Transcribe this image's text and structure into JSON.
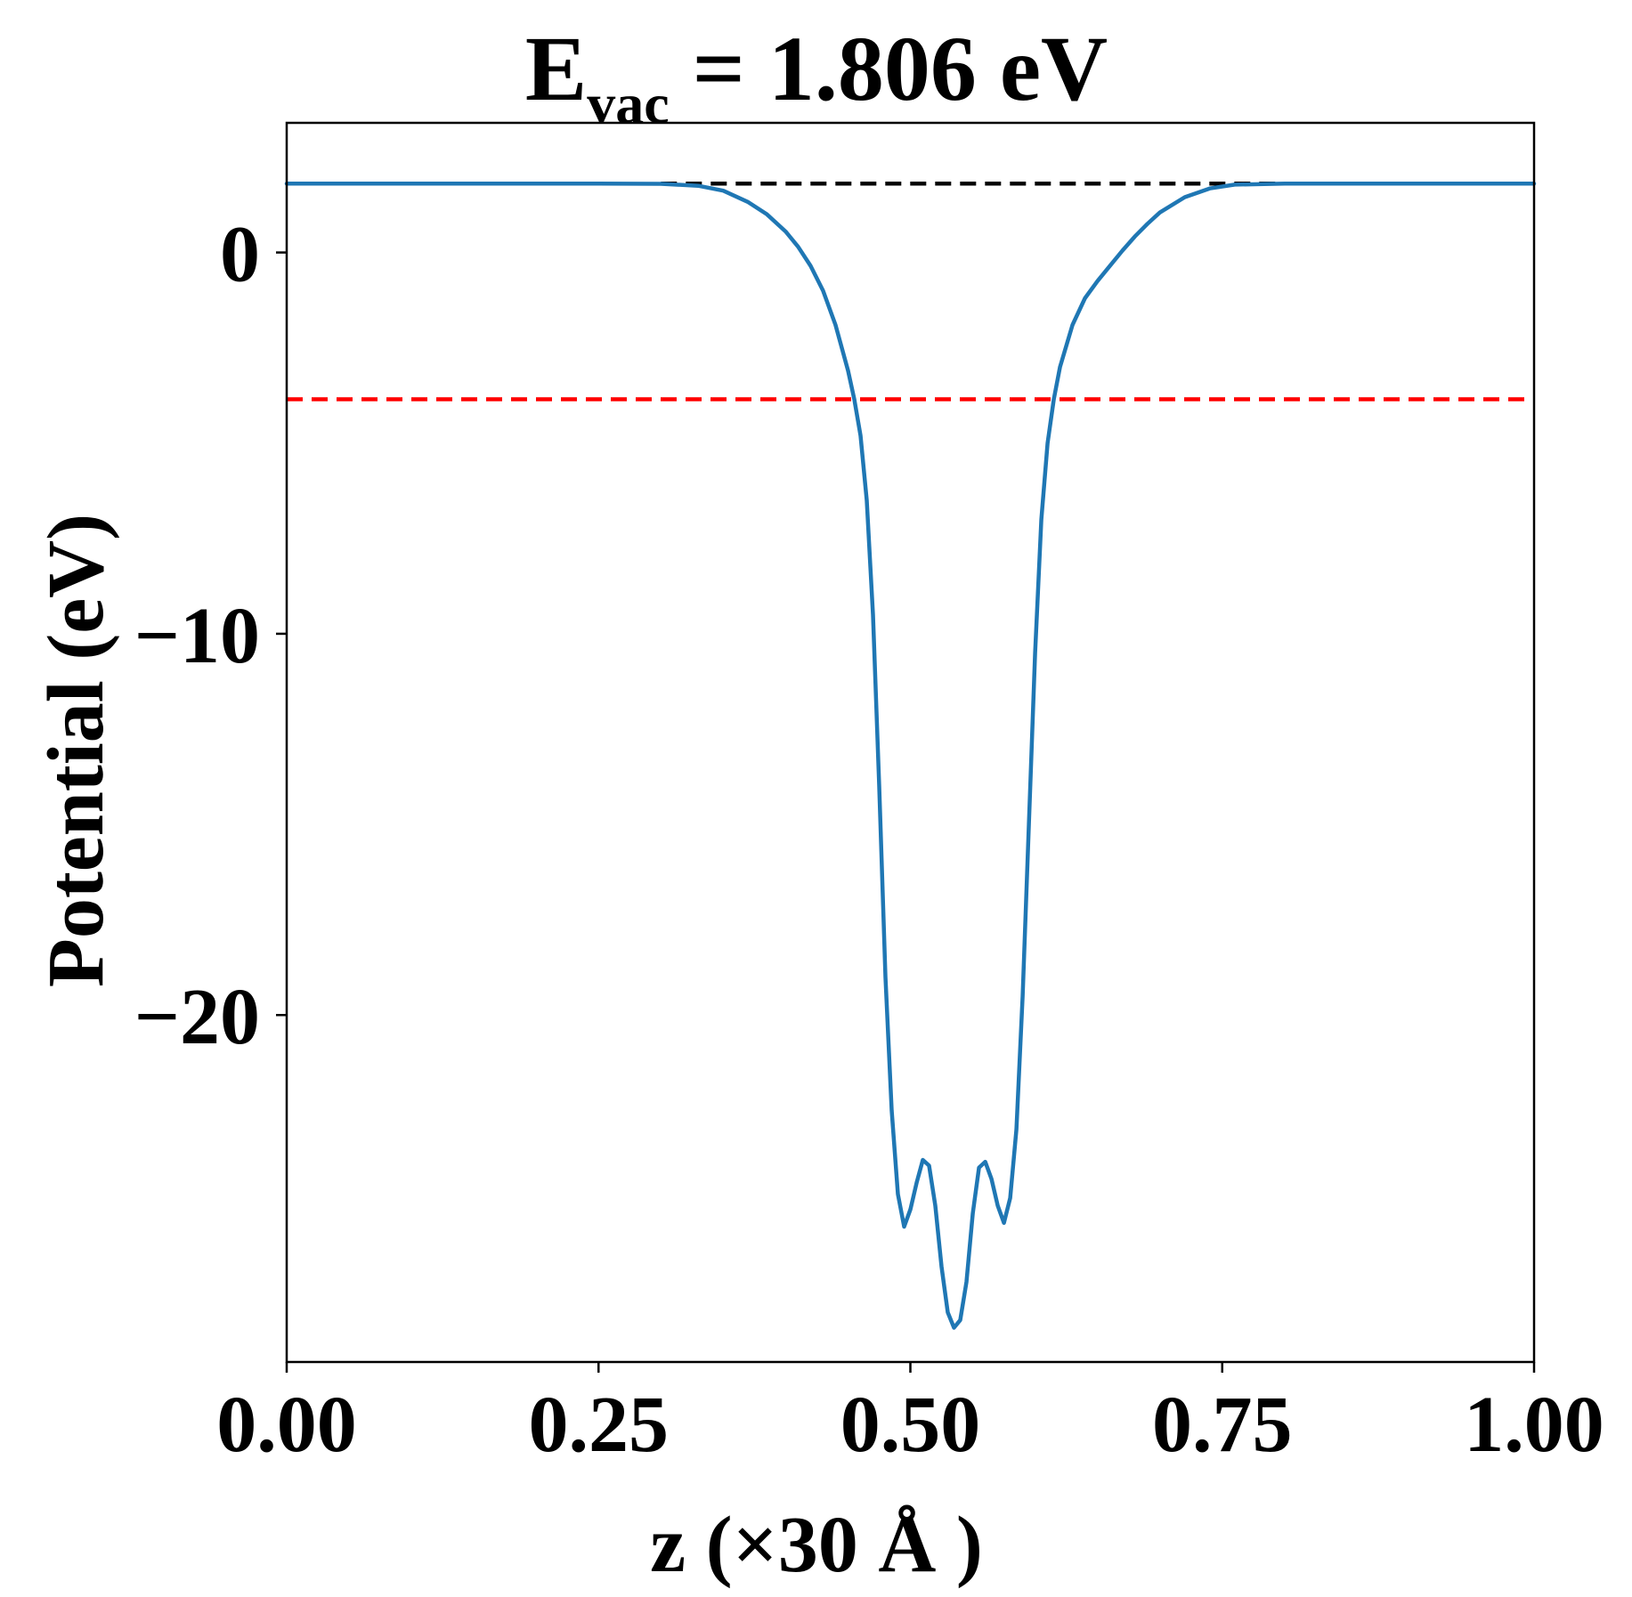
{
  "chart_data": {
    "type": "line",
    "title": {
      "main": "E",
      "subscript": "vac",
      "rest": " = 1.806 eV"
    },
    "xlabel": "z (×30 Å )",
    "ylabel": "Potential (eV)",
    "xlim": [
      0.0,
      1.0
    ],
    "ylim": [
      -29.1,
      3.4
    ],
    "x_ticks": [
      0.0,
      0.25,
      0.5,
      0.75,
      1.0
    ],
    "x_tick_labels": [
      "0.00",
      "0.25",
      "0.50",
      "0.75",
      "1.00"
    ],
    "y_ticks": [
      0,
      -10,
      -20
    ],
    "y_tick_labels": [
      "0",
      "−10",
      "−20"
    ],
    "grid": false,
    "reference_lines": [
      {
        "role": "vacuum-level",
        "y": 1.806,
        "color": "#000000",
        "style": "dashed",
        "x_start": 0.3,
        "x_end": 1.0
      },
      {
        "role": "fermi-level",
        "y": -3.85,
        "color": "#ff0000",
        "style": "dashed",
        "x_start": 0.0,
        "x_end": 1.0
      }
    ],
    "series": [
      {
        "color": "#1f77b4",
        "points": [
          [
            0.0,
            1.806
          ],
          [
            0.25,
            1.806
          ],
          [
            0.3,
            1.8
          ],
          [
            0.33,
            1.75
          ],
          [
            0.35,
            1.62
          ],
          [
            0.37,
            1.32
          ],
          [
            0.385,
            1.0
          ],
          [
            0.4,
            0.55
          ],
          [
            0.41,
            0.15
          ],
          [
            0.42,
            -0.35
          ],
          [
            0.43,
            -1.0
          ],
          [
            0.44,
            -1.9
          ],
          [
            0.45,
            -3.1
          ],
          [
            0.455,
            -3.85
          ],
          [
            0.46,
            -4.8
          ],
          [
            0.465,
            -6.5
          ],
          [
            0.47,
            -9.5
          ],
          [
            0.475,
            -14.0
          ],
          [
            0.48,
            -19.0
          ],
          [
            0.485,
            -22.5
          ],
          [
            0.49,
            -24.7
          ],
          [
            0.495,
            -25.55
          ],
          [
            0.5,
            -25.1
          ],
          [
            0.505,
            -24.4
          ],
          [
            0.51,
            -23.8
          ],
          [
            0.515,
            -23.95
          ],
          [
            0.52,
            -25.0
          ],
          [
            0.525,
            -26.6
          ],
          [
            0.53,
            -27.8
          ],
          [
            0.535,
            -28.2
          ],
          [
            0.54,
            -28.0
          ],
          [
            0.545,
            -27.0
          ],
          [
            0.55,
            -25.2
          ],
          [
            0.555,
            -24.0
          ],
          [
            0.56,
            -23.85
          ],
          [
            0.565,
            -24.3
          ],
          [
            0.57,
            -25.0
          ],
          [
            0.575,
            -25.45
          ],
          [
            0.58,
            -24.8
          ],
          [
            0.585,
            -23.0
          ],
          [
            0.59,
            -19.5
          ],
          [
            0.595,
            -15.0
          ],
          [
            0.6,
            -10.5
          ],
          [
            0.605,
            -7.0
          ],
          [
            0.61,
            -5.0
          ],
          [
            0.615,
            -3.85
          ],
          [
            0.62,
            -3.0
          ],
          [
            0.63,
            -1.9
          ],
          [
            0.64,
            -1.2
          ],
          [
            0.65,
            -0.75
          ],
          [
            0.66,
            -0.35
          ],
          [
            0.67,
            0.05
          ],
          [
            0.68,
            0.42
          ],
          [
            0.69,
            0.75
          ],
          [
            0.7,
            1.05
          ],
          [
            0.72,
            1.45
          ],
          [
            0.74,
            1.68
          ],
          [
            0.76,
            1.78
          ],
          [
            0.8,
            1.806
          ],
          [
            1.0,
            1.806
          ]
        ]
      }
    ]
  }
}
